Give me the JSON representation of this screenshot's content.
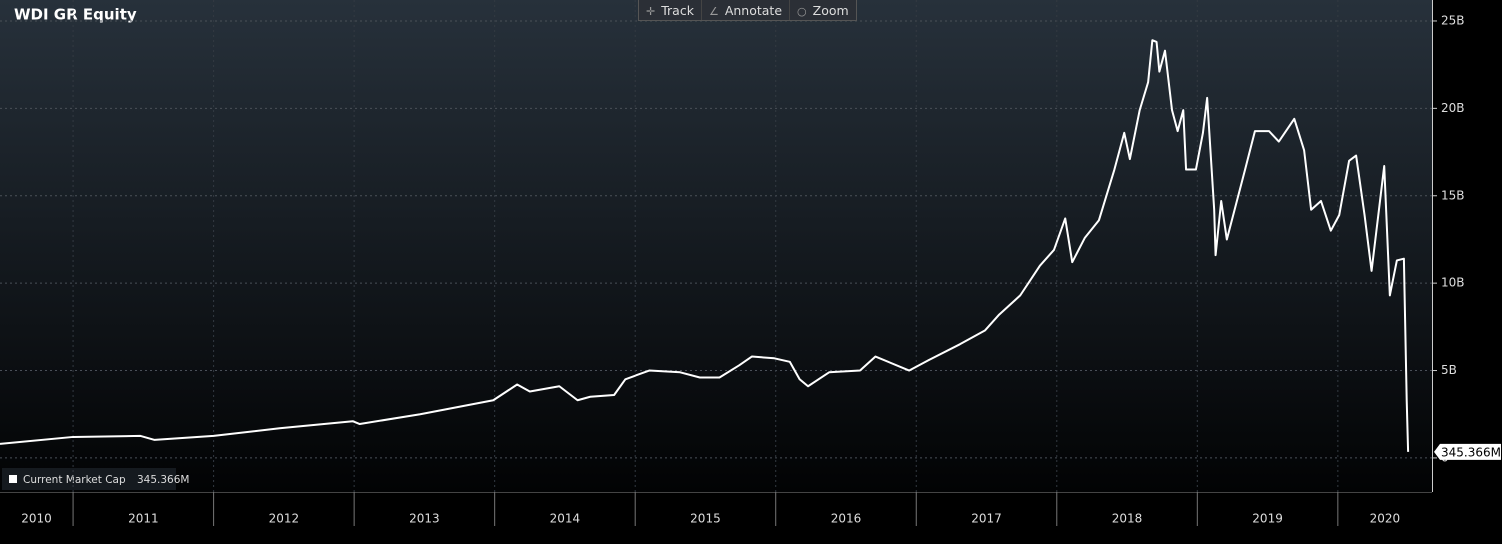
{
  "chart_data": {
    "type": "line",
    "title": "WDI GR Equity",
    "toolbar": [
      "Track",
      "Annotate",
      "Zoom"
    ],
    "x": [
      2010.48,
      2011.0,
      2011.48,
      2011.58,
      2012.0,
      2012.47,
      2012.99,
      2013.04,
      2013.47,
      2013.99,
      2014.16,
      2014.25,
      2014.46,
      2014.59,
      2014.68,
      2014.85,
      2014.93,
      2015.1,
      2015.32,
      2015.46,
      2015.6,
      2015.74,
      2015.83,
      2015.99,
      2016.1,
      2016.17,
      2016.23,
      2016.38,
      2016.6,
      2016.71,
      2016.95,
      2017.09,
      2017.31,
      2017.49,
      2017.59,
      2017.74,
      2017.88,
      2017.98,
      2018.06,
      2018.11,
      2018.2,
      2018.3,
      2018.41,
      2018.48,
      2018.52,
      2018.59,
      2018.65,
      2018.68,
      2018.71,
      2018.73,
      2018.77,
      2018.82,
      2018.86,
      2018.9,
      2018.92,
      2018.99,
      2019.04,
      2019.07,
      2019.12,
      2019.13,
      2019.17,
      2019.21,
      2019.34,
      2019.41,
      2019.51,
      2019.58,
      2019.69,
      2019.76,
      2019.81,
      2019.88,
      2019.95,
      2020.01,
      2020.08,
      2020.13,
      2020.19,
      2020.24,
      2020.3,
      2020.33,
      2020.37,
      2020.42,
      2020.47,
      2020.49,
      2020.5
    ],
    "series": [
      {
        "name": "Current Market Cap",
        "color": "#ffffff",
        "values": [
          0.8,
          1.2,
          1.26,
          1.03,
          1.26,
          1.7,
          2.1,
          1.94,
          2.5,
          3.3,
          4.2,
          3.8,
          4.1,
          3.3,
          3.5,
          3.6,
          4.5,
          5.0,
          4.9,
          4.6,
          4.6,
          5.3,
          5.8,
          5.7,
          5.5,
          4.5,
          4.1,
          4.9,
          5.0,
          5.8,
          5.0,
          5.6,
          6.5,
          7.3,
          8.2,
          9.3,
          11.0,
          11.9,
          13.7,
          11.2,
          12.6,
          13.6,
          16.5,
          18.6,
          17.1,
          19.9,
          21.5,
          23.9,
          23.8,
          22.1,
          23.3,
          19.9,
          18.7,
          19.9,
          16.5,
          16.5,
          18.6,
          20.6,
          14.2,
          11.6,
          14.7,
          12.5,
          16.5,
          18.7,
          18.7,
          18.1,
          19.4,
          17.6,
          14.2,
          14.7,
          13.0,
          13.9,
          17.0,
          17.3,
          13.9,
          10.7,
          14.7,
          16.7,
          9.3,
          11.3,
          11.4,
          3.3,
          0.345366
        ]
      }
    ],
    "current": {
      "value": 0.345366,
      "label": "345.366M"
    },
    "xlim": [
      2010.48,
      2020.67
    ],
    "xticks": [
      2010,
      2011,
      2012,
      2013,
      2014,
      2015,
      2016,
      2017,
      2018,
      2019,
      2020
    ],
    "ylim": [
      -1.95,
      26.2
    ],
    "yticks": [
      0,
      {
        "value": 5,
        "label": "5B"
      },
      {
        "value": 10,
        "label": "10B"
      },
      {
        "value": 15,
        "label": "15B"
      },
      {
        "value": 20,
        "label": "20B"
      },
      {
        "value": 25,
        "label": "25B"
      }
    ],
    "grid": true
  }
}
